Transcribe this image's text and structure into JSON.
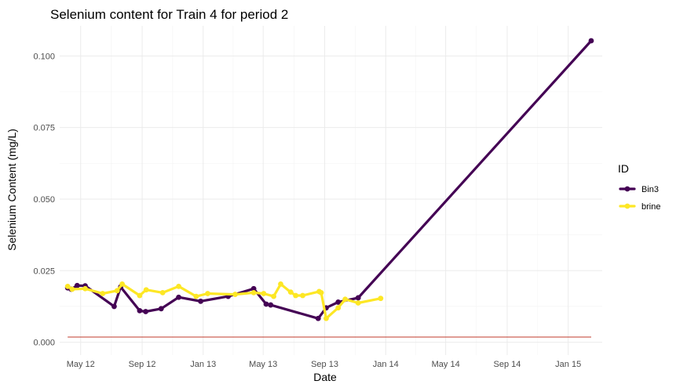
{
  "chart_data": {
    "type": "line",
    "title": "Selenium content for Train 4 for period 2",
    "xlabel": "Date",
    "ylabel": "Selenium Content (mg/L)",
    "x_domain": [
      "2012-03-20",
      "2015-03-10"
    ],
    "ylim": [
      -0.0045,
      0.1105
    ],
    "x_ticks": [
      {
        "date": "2012-05-01",
        "label": "May 12"
      },
      {
        "date": "2012-09-01",
        "label": "Sep 12"
      },
      {
        "date": "2013-01-01",
        "label": "Jan 13"
      },
      {
        "date": "2013-05-01",
        "label": "May 13"
      },
      {
        "date": "2013-09-01",
        "label": "Sep 13"
      },
      {
        "date": "2014-01-01",
        "label": "Jan 14"
      },
      {
        "date": "2014-05-01",
        "label": "May 14"
      },
      {
        "date": "2014-09-01",
        "label": "Sep 14"
      },
      {
        "date": "2015-01-01",
        "label": "Jan 15"
      }
    ],
    "y_ticks": [
      {
        "value": 0.0,
        "label": "0.000"
      },
      {
        "value": 0.025,
        "label": "0.025"
      },
      {
        "value": 0.05,
        "label": "0.050"
      },
      {
        "value": 0.075,
        "label": "0.075"
      },
      {
        "value": 0.1,
        "label": "0.100"
      }
    ],
    "grid": true,
    "legend": {
      "title": "ID",
      "position": "right"
    },
    "series": [
      {
        "name": "Bin3",
        "color": "#440154",
        "points": [
          {
            "x": "2012-04-05",
            "y": 0.019
          },
          {
            "x": "2012-04-12",
            "y": 0.0185
          },
          {
            "x": "2012-04-24",
            "y": 0.0198
          },
          {
            "x": "2012-05-10",
            "y": 0.0197
          },
          {
            "x": "2012-07-07",
            "y": 0.0125
          },
          {
            "x": "2012-07-20",
            "y": 0.0193
          },
          {
            "x": "2012-08-27",
            "y": 0.011
          },
          {
            "x": "2012-09-08",
            "y": 0.0107
          },
          {
            "x": "2012-10-09",
            "y": 0.0117
          },
          {
            "x": "2012-11-13",
            "y": 0.0157
          },
          {
            "x": "2012-12-27",
            "y": 0.0143
          },
          {
            "x": "2013-02-20",
            "y": 0.016
          },
          {
            "x": "2013-04-12",
            "y": 0.0187
          },
          {
            "x": "2013-05-07",
            "y": 0.0133
          },
          {
            "x": "2013-05-16",
            "y": 0.013
          },
          {
            "x": "2013-08-19",
            "y": 0.0083
          },
          {
            "x": "2013-09-04",
            "y": 0.012
          },
          {
            "x": "2013-09-28",
            "y": 0.014
          },
          {
            "x": "2013-11-07",
            "y": 0.0155
          },
          {
            "x": "2015-02-16",
            "y": 0.1053
          }
        ]
      },
      {
        "name": "brine",
        "color": "#fde725",
        "points": [
          {
            "x": "2012-04-05",
            "y": 0.0195
          },
          {
            "x": "2012-04-14",
            "y": 0.0185
          },
          {
            "x": "2012-05-10",
            "y": 0.0187
          },
          {
            "x": "2012-06-14",
            "y": 0.017
          },
          {
            "x": "2012-07-13",
            "y": 0.018
          },
          {
            "x": "2012-07-23",
            "y": 0.0203
          },
          {
            "x": "2012-08-27",
            "y": 0.0163
          },
          {
            "x": "2012-09-09",
            "y": 0.0183
          },
          {
            "x": "2012-10-12",
            "y": 0.0173
          },
          {
            "x": "2012-11-13",
            "y": 0.0195
          },
          {
            "x": "2012-12-18",
            "y": 0.016
          },
          {
            "x": "2013-01-10",
            "y": 0.017
          },
          {
            "x": "2013-03-06",
            "y": 0.0167
          },
          {
            "x": "2013-04-12",
            "y": 0.0173
          },
          {
            "x": "2013-05-02",
            "y": 0.017
          },
          {
            "x": "2013-05-22",
            "y": 0.016
          },
          {
            "x": "2013-06-05",
            "y": 0.0203
          },
          {
            "x": "2013-06-25",
            "y": 0.0175
          },
          {
            "x": "2013-07-05",
            "y": 0.0163
          },
          {
            "x": "2013-07-19",
            "y": 0.0163
          },
          {
            "x": "2013-08-21",
            "y": 0.0177
          },
          {
            "x": "2013-08-25",
            "y": 0.0173
          },
          {
            "x": "2013-09-04",
            "y": 0.0083
          },
          {
            "x": "2013-09-28",
            "y": 0.012
          },
          {
            "x": "2013-10-12",
            "y": 0.015
          },
          {
            "x": "2013-11-07",
            "y": 0.0137
          },
          {
            "x": "2013-12-22",
            "y": 0.0153
          }
        ]
      }
    ],
    "reference_line": {
      "color": "#c0392b",
      "y": 0.0018,
      "x_start": "2012-04-05",
      "x_end": "2015-02-16"
    }
  }
}
